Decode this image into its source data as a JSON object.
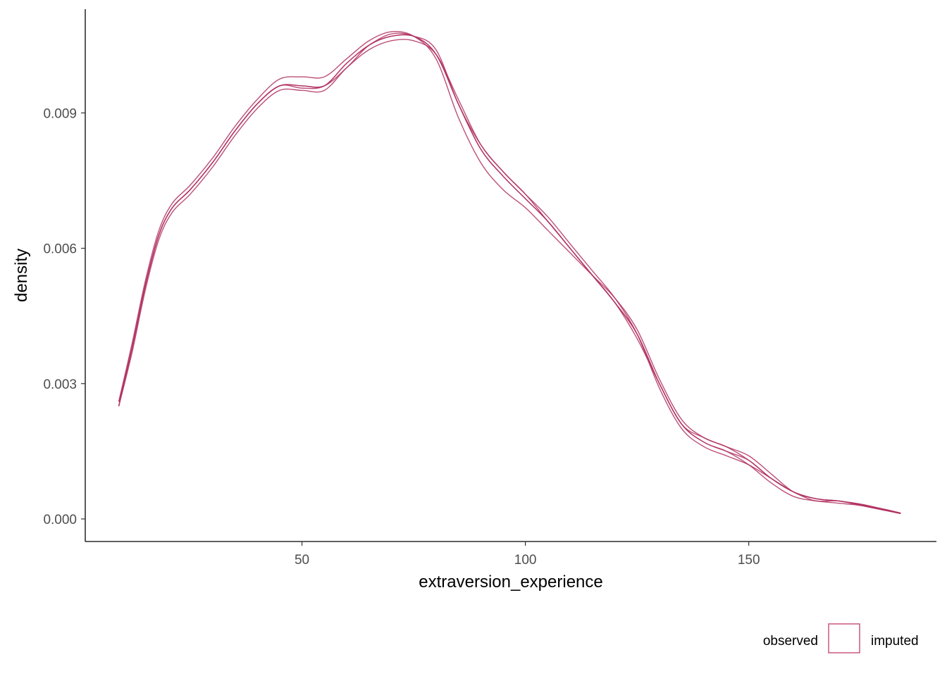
{
  "chart_data": {
    "type": "line",
    "title": "",
    "xlabel": "extraversion_experience",
    "ylabel": "density",
    "xlim": [
      1.5,
      192
    ],
    "ylim": [
      -0.0005,
      0.0113
    ],
    "xticks": [
      50,
      100,
      150
    ],
    "xtick_labels": [
      "50",
      "100",
      "150"
    ],
    "yticks": [
      0.0,
      0.003,
      0.006,
      0.009
    ],
    "ytick_labels": [
      "0.000",
      "0.003",
      "0.006",
      "0.009"
    ],
    "grid": false,
    "legend_position": "bottom-right",
    "legend": {
      "left_label": "observed",
      "right_label": "imputed"
    },
    "line_color": "#b03060",
    "x": [
      9,
      12,
      15,
      18,
      21,
      25,
      30,
      35,
      40,
      45,
      50,
      55,
      60,
      65,
      70,
      75,
      80,
      85,
      90,
      95,
      100,
      105,
      110,
      115,
      120,
      125,
      130,
      135,
      140,
      145,
      150,
      155,
      160,
      165,
      170,
      175,
      180,
      184
    ],
    "series": [
      {
        "values": [
          0.0025,
          0.0038,
          0.0052,
          0.0063,
          0.0069,
          0.0073,
          0.0079,
          0.0086,
          0.0092,
          0.0096,
          0.00955,
          0.0096,
          0.0101,
          0.0105,
          0.01075,
          0.0107,
          0.0103,
          0.0092,
          0.0082,
          0.0076,
          0.0071,
          0.0066,
          0.006,
          0.0054,
          0.0048,
          0.0041,
          0.003,
          0.0021,
          0.0017,
          0.0015,
          0.0012,
          0.0008,
          0.0005,
          0.0004,
          0.00035,
          0.0003,
          0.0002,
          0.00012
        ]
      },
      {
        "values": [
          0.0026,
          0.0039,
          0.0053,
          0.0064,
          0.007,
          0.0074,
          0.008,
          0.0087,
          0.0093,
          0.00975,
          0.0098,
          0.0098,
          0.0102,
          0.0106,
          0.0108,
          0.0107,
          0.0102,
          0.0089,
          0.0079,
          0.0073,
          0.0069,
          0.0064,
          0.0059,
          0.0054,
          0.0049,
          0.0042,
          0.0031,
          0.0022,
          0.0018,
          0.0016,
          0.0013,
          0.0009,
          0.0006,
          0.00045,
          0.0004,
          0.00032,
          0.00022,
          0.00013
        ]
      },
      {
        "values": [
          0.0025,
          0.0037,
          0.0051,
          0.0062,
          0.0068,
          0.0072,
          0.0078,
          0.0085,
          0.0091,
          0.0095,
          0.0095,
          0.0095,
          0.01,
          0.0104,
          0.0106,
          0.0106,
          0.0103,
          0.0093,
          0.0083,
          0.0077,
          0.0072,
          0.0067,
          0.0061,
          0.0055,
          0.0049,
          0.0041,
          0.0029,
          0.002,
          0.0016,
          0.0014,
          0.0012,
          0.0009,
          0.0006,
          0.0004,
          0.0004,
          0.0003,
          0.0002,
          0.00012
        ]
      },
      {
        "values": [
          0.0026,
          0.0038,
          0.0052,
          0.0063,
          0.0069,
          0.0073,
          0.0079,
          0.0086,
          0.0092,
          0.0096,
          0.0096,
          0.0096,
          0.01,
          0.0105,
          0.0107,
          0.0107,
          0.0104,
          0.0092,
          0.0083,
          0.0077,
          0.0072,
          0.0066,
          0.006,
          0.0054,
          0.0048,
          0.004,
          0.003,
          0.0021,
          0.0018,
          0.0016,
          0.0014,
          0.001,
          0.0006,
          0.00045,
          0.0004,
          0.00033,
          0.00022,
          0.00013
        ]
      },
      {
        "values": [
          0.0025,
          0.0038,
          0.0052,
          0.0063,
          0.0069,
          0.0073,
          0.0079,
          0.0086,
          0.0092,
          0.0096,
          0.0096,
          0.0096,
          0.0101,
          0.0105,
          0.0107,
          0.0107,
          0.0103,
          0.0092,
          0.0082,
          0.0076,
          0.0071,
          0.0066,
          0.006,
          0.0054,
          0.0048,
          0.0041,
          0.003,
          0.0021,
          0.0017,
          0.0015,
          0.0013,
          0.0009,
          0.0006,
          0.00045,
          0.0004,
          0.00032,
          0.00022,
          0.00013
        ]
      }
    ]
  }
}
